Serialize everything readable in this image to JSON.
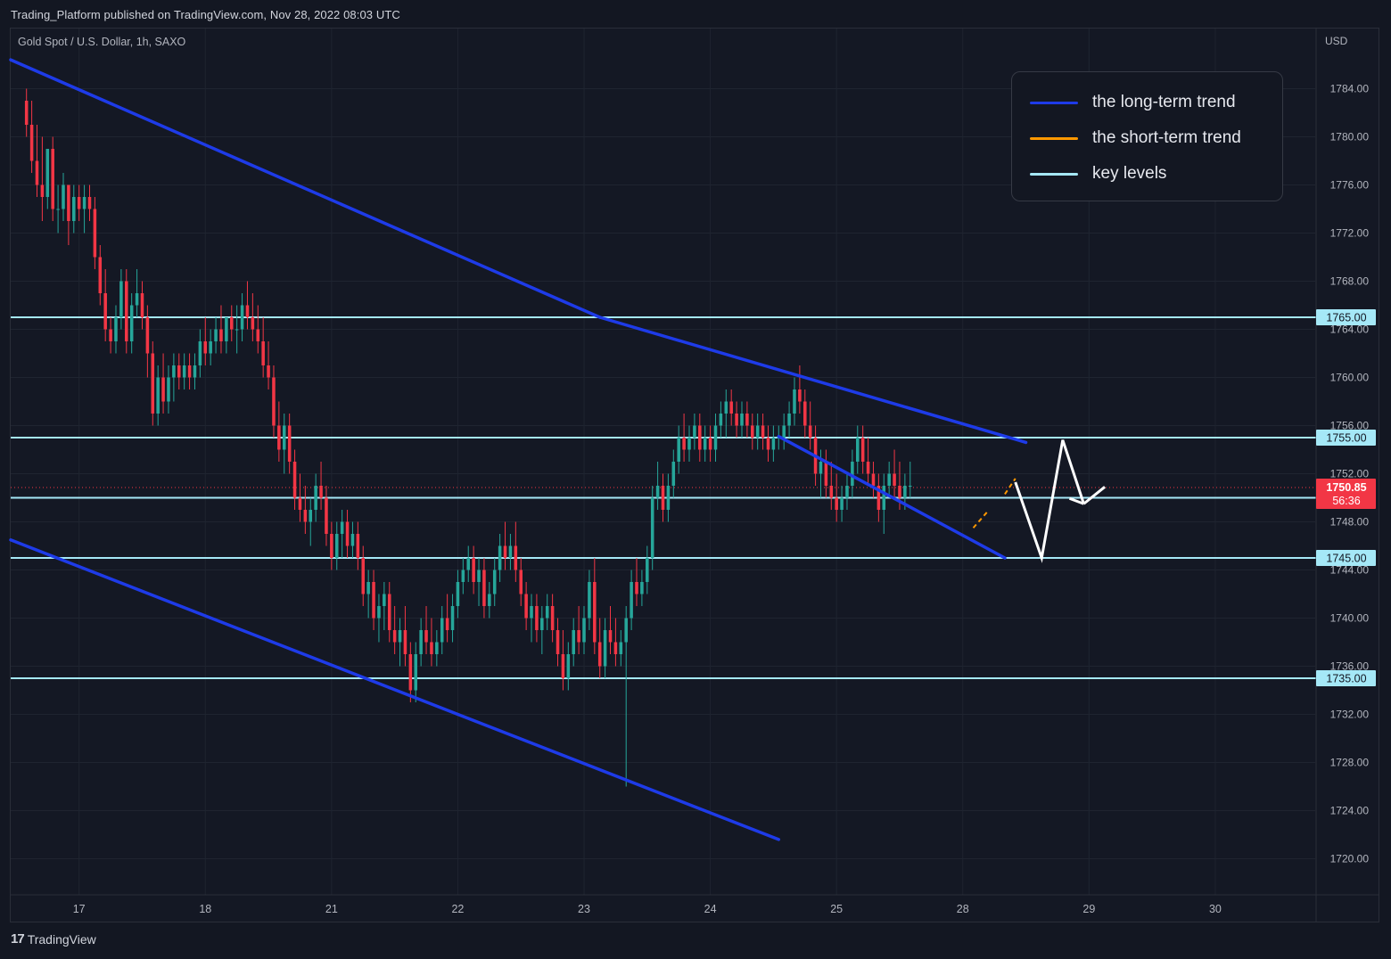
{
  "header": {
    "caption": "Trading_Platform published on TradingView.com, Nov 28, 2022 08:03 UTC",
    "symbol": "Gold Spot / U.S. Dollar, 1h, SAXO",
    "currency": "USD"
  },
  "legend": {
    "items": [
      {
        "label": "the long-term trend",
        "color": "#1e3be8"
      },
      {
        "label": "the short-term trend",
        "color": "#ff9800"
      },
      {
        "label": "key levels",
        "color": "#a5e8f7"
      }
    ]
  },
  "footer": {
    "brand_mark": "17",
    "brand": "TradingView"
  },
  "price_label": {
    "price": "1750.85",
    "countdown": "56:36",
    "color": "#f23645"
  },
  "chart_data": {
    "type": "candlestick",
    "ylim": [
      1717,
      1789
    ],
    "yticks": [
      1720,
      1724,
      1728,
      1732,
      1736,
      1740,
      1744,
      1748,
      1752,
      1756,
      1760,
      1764,
      1768,
      1772,
      1776,
      1780,
      1784
    ],
    "ytick_labels": [
      "1720.00",
      "1724.00",
      "1728.00",
      "1732.00",
      "1736.00",
      "1740.00",
      "1744.00",
      "1748.00",
      "1752.00",
      "1756.00",
      "1760.00",
      "1764.00",
      "1768.00",
      "1772.00",
      "1776.00",
      "1780.00",
      "1784.00"
    ],
    "xticks": [
      {
        "label": "17",
        "index": 10
      },
      {
        "label": "18",
        "index": 34
      },
      {
        "label": "21",
        "index": 58
      },
      {
        "label": "22",
        "index": 82
      },
      {
        "label": "23",
        "index": 106
      },
      {
        "label": "24",
        "index": 130
      },
      {
        "label": "25",
        "index": 154
      },
      {
        "label": "28",
        "index": 178
      },
      {
        "label": "29",
        "index": 202
      },
      {
        "label": "30",
        "index": 226
      }
    ],
    "index_range": [
      -3,
      245
    ],
    "up_color": "#26a69a",
    "down_color": "#f23645",
    "current_price": 1750.85,
    "key_levels": [
      {
        "price": 1765.0,
        "label": "1765.00"
      },
      {
        "price": 1755.0,
        "label": "1755.00"
      },
      {
        "price": 1750.0,
        "label": "1750.00"
      },
      {
        "price": 1745.0,
        "label": "1745.00"
      },
      {
        "price": 1735.0,
        "label": "1735.00"
      }
    ],
    "key_level_color": "#a5e8f7",
    "trend_lines": [
      {
        "name": "long-term-upper",
        "from": [
          -3,
          1786.4
        ],
        "to": [
          109,
          1765.0
        ],
        "color": "#1e3be8"
      },
      {
        "name": "long-term-upper-2",
        "from": [
          109,
          1765.0
        ],
        "to": [
          190,
          1754.6
        ],
        "color": "#1e3be8"
      },
      {
        "name": "long-term-lower",
        "from": [
          -3,
          1746.5
        ],
        "to": [
          143,
          1721.6
        ],
        "color": "#1e3be8"
      },
      {
        "name": "channel-lower",
        "from": [
          143,
          1755.1
        ],
        "to": [
          186,
          1745.0
        ],
        "color": "#1e3be8"
      }
    ],
    "short_term_lines": [
      {
        "from": [
          180,
          1747.5
        ],
        "to": [
          183,
          1749.0
        ],
        "color": "#ff9800"
      },
      {
        "from": [
          186,
          1750.3
        ],
        "to": [
          188,
          1751.6
        ],
        "color": "#ff9800"
      }
    ],
    "projection": {
      "color": "#ffffff",
      "points": [
        [
          188,
          1751.3
        ],
        [
          193,
          1745.0
        ],
        [
          197,
          1754.8
        ],
        [
          201,
          1749.5
        ]
      ],
      "arrow_end": [
        205,
        1750.9
      ]
    },
    "candles": [
      [
        1783,
        1784,
        1780,
        1781
      ],
      [
        1781,
        1783,
        1777,
        1778
      ],
      [
        1778,
        1781,
        1775,
        1776
      ],
      [
        1776,
        1780,
        1773,
        1775
      ],
      [
        1775,
        1779,
        1774,
        1779
      ],
      [
        1779,
        1780,
        1773,
        1774
      ],
      [
        1774,
        1776,
        1772,
        1774
      ],
      [
        1774,
        1777,
        1773,
        1776
      ],
      [
        1776,
        1776,
        1771,
        1773
      ],
      [
        1773,
        1776,
        1772,
        1775
      ],
      [
        1775,
        1776,
        1773,
        1774
      ],
      [
        1774,
        1776,
        1772,
        1775
      ],
      [
        1775,
        1776,
        1773,
        1774
      ],
      [
        1774,
        1775,
        1769,
        1770
      ],
      [
        1770,
        1771,
        1766,
        1767
      ],
      [
        1767,
        1769,
        1763,
        1764
      ],
      [
        1764,
        1765,
        1762,
        1763
      ],
      [
        1763,
        1766,
        1762,
        1765
      ],
      [
        1765,
        1769,
        1764,
        1768
      ],
      [
        1768,
        1769,
        1762,
        1763
      ],
      [
        1763,
        1767,
        1762,
        1766
      ],
      [
        1766,
        1769,
        1765,
        1767
      ],
      [
        1767,
        1768,
        1764,
        1765
      ],
      [
        1765,
        1766,
        1760,
        1762
      ],
      [
        1762,
        1763,
        1756,
        1757
      ],
      [
        1757,
        1761,
        1756,
        1760
      ],
      [
        1760,
        1762,
        1757,
        1758
      ],
      [
        1758,
        1761,
        1757,
        1760
      ],
      [
        1760,
        1762,
        1758,
        1761
      ],
      [
        1761,
        1762,
        1759,
        1760
      ],
      [
        1760,
        1762,
        1759,
        1761
      ],
      [
        1761,
        1762,
        1759,
        1760
      ],
      [
        1760,
        1762,
        1759,
        1761
      ],
      [
        1761,
        1764,
        1760,
        1763
      ],
      [
        1763,
        1765,
        1761,
        1762
      ],
      [
        1762,
        1764,
        1761,
        1763
      ],
      [
        1763,
        1765,
        1762,
        1764
      ],
      [
        1764,
        1766,
        1762,
        1763
      ],
      [
        1763,
        1765,
        1762,
        1765
      ],
      [
        1765,
        1766,
        1763,
        1764
      ],
      [
        1764,
        1766,
        1762,
        1764
      ],
      [
        1764,
        1767,
        1763,
        1766
      ],
      [
        1766,
        1768,
        1764,
        1765
      ],
      [
        1765,
        1767,
        1763,
        1764
      ],
      [
        1764,
        1766,
        1762,
        1763
      ],
      [
        1763,
        1765,
        1760,
        1761
      ],
      [
        1761,
        1763,
        1759,
        1760
      ],
      [
        1760,
        1761,
        1755,
        1756
      ],
      [
        1756,
        1758,
        1753,
        1754
      ],
      [
        1754,
        1757,
        1752,
        1756
      ],
      [
        1756,
        1757,
        1752,
        1753
      ],
      [
        1753,
        1754,
        1749,
        1750
      ],
      [
        1750,
        1752,
        1748,
        1749
      ],
      [
        1749,
        1751,
        1747,
        1748
      ],
      [
        1748,
        1750,
        1746,
        1749
      ],
      [
        1749,
        1752,
        1748,
        1751
      ],
      [
        1751,
        1753,
        1749,
        1750
      ],
      [
        1750,
        1751,
        1746,
        1747
      ],
      [
        1747,
        1748,
        1744,
        1745
      ],
      [
        1745,
        1748,
        1744,
        1747
      ],
      [
        1747,
        1749,
        1745,
        1748
      ],
      [
        1748,
        1749,
        1745,
        1746
      ],
      [
        1746,
        1748,
        1745,
        1747
      ],
      [
        1747,
        1748,
        1744,
        1745
      ],
      [
        1745,
        1746,
        1741,
        1742
      ],
      [
        1742,
        1744,
        1740,
        1743
      ],
      [
        1743,
        1744,
        1739,
        1740
      ],
      [
        1740,
        1742,
        1738,
        1741
      ],
      [
        1741,
        1743,
        1739,
        1742
      ],
      [
        1742,
        1743,
        1738,
        1739
      ],
      [
        1739,
        1741,
        1737,
        1738
      ],
      [
        1738,
        1740,
        1736,
        1739
      ],
      [
        1739,
        1741,
        1736,
        1737
      ],
      [
        1737,
        1738,
        1733,
        1734
      ],
      [
        1734,
        1738,
        1733,
        1737
      ],
      [
        1737,
        1740,
        1736,
        1739
      ],
      [
        1739,
        1741,
        1737,
        1738
      ],
      [
        1738,
        1740,
        1736,
        1737
      ],
      [
        1737,
        1739,
        1736,
        1738
      ],
      [
        1738,
        1741,
        1737,
        1740
      ],
      [
        1740,
        1742,
        1738,
        1739
      ],
      [
        1739,
        1742,
        1738,
        1741
      ],
      [
        1741,
        1744,
        1740,
        1743
      ],
      [
        1743,
        1745,
        1742,
        1744
      ],
      [
        1744,
        1746,
        1743,
        1745
      ],
      [
        1745,
        1746,
        1742,
        1743
      ],
      [
        1743,
        1745,
        1741,
        1744
      ],
      [
        1744,
        1745,
        1740,
        1741
      ],
      [
        1741,
        1743,
        1740,
        1742
      ],
      [
        1742,
        1745,
        1741,
        1744
      ],
      [
        1744,
        1747,
        1743,
        1746
      ],
      [
        1746,
        1748,
        1744,
        1745
      ],
      [
        1745,
        1747,
        1744,
        1746
      ],
      [
        1746,
        1748,
        1743,
        1744
      ],
      [
        1744,
        1745,
        1741,
        1742
      ],
      [
        1742,
        1743,
        1739,
        1740
      ],
      [
        1740,
        1742,
        1738,
        1741
      ],
      [
        1741,
        1742,
        1738,
        1739
      ],
      [
        1739,
        1741,
        1737,
        1740
      ],
      [
        1740,
        1742,
        1739,
        1741
      ],
      [
        1741,
        1742,
        1738,
        1739
      ],
      [
        1739,
        1740,
        1736,
        1737
      ],
      [
        1737,
        1739,
        1734,
        1735
      ],
      [
        1735,
        1738,
        1734,
        1737
      ],
      [
        1737,
        1740,
        1736,
        1739
      ],
      [
        1739,
        1741,
        1737,
        1738
      ],
      [
        1738,
        1741,
        1737,
        1740
      ],
      [
        1740,
        1744,
        1739,
        1743
      ],
      [
        1743,
        1745,
        1737,
        1738
      ],
      [
        1738,
        1740,
        1735,
        1736
      ],
      [
        1736,
        1740,
        1735,
        1739
      ],
      [
        1739,
        1741,
        1737,
        1738
      ],
      [
        1738,
        1740,
        1736,
        1737
      ],
      [
        1737,
        1739,
        1736,
        1738
      ],
      [
        1738,
        1741,
        1726,
        1740
      ],
      [
        1740,
        1744,
        1739,
        1743
      ],
      [
        1743,
        1745,
        1741,
        1742
      ],
      [
        1742,
        1744,
        1741,
        1743
      ],
      [
        1743,
        1746,
        1742,
        1745
      ],
      [
        1745,
        1751,
        1744,
        1750
      ],
      [
        1750,
        1753,
        1749,
        1751
      ],
      [
        1751,
        1752,
        1748,
        1749
      ],
      [
        1749,
        1752,
        1748,
        1751
      ],
      [
        1751,
        1754,
        1750,
        1753
      ],
      [
        1753,
        1756,
        1752,
        1755
      ],
      [
        1755,
        1757,
        1753,
        1754
      ],
      [
        1754,
        1756,
        1753,
        1755
      ],
      [
        1755,
        1757,
        1754,
        1756
      ],
      [
        1756,
        1757,
        1753,
        1754
      ],
      [
        1754,
        1756,
        1753,
        1755
      ],
      [
        1755,
        1756,
        1753,
        1754
      ],
      [
        1754,
        1757,
        1753,
        1756
      ],
      [
        1756,
        1758,
        1755,
        1757
      ],
      [
        1757,
        1759,
        1755,
        1758
      ],
      [
        1758,
        1759,
        1756,
        1757
      ],
      [
        1757,
        1758,
        1755,
        1756
      ],
      [
        1756,
        1758,
        1755,
        1757
      ],
      [
        1757,
        1758,
        1755,
        1756
      ],
      [
        1756,
        1757,
        1754,
        1755
      ],
      [
        1755,
        1757,
        1754,
        1756
      ],
      [
        1756,
        1757,
        1754,
        1755
      ],
      [
        1755,
        1756,
        1753,
        1754
      ],
      [
        1754,
        1756,
        1753,
        1755
      ],
      [
        1755,
        1756,
        1754,
        1755
      ],
      [
        1755,
        1757,
        1754,
        1756
      ],
      [
        1756,
        1758,
        1755,
        1757
      ],
      [
        1757,
        1760,
        1756,
        1759
      ],
      [
        1759,
        1761,
        1757,
        1758
      ],
      [
        1758,
        1759,
        1755,
        1756
      ],
      [
        1756,
        1758,
        1754,
        1755
      ],
      [
        1755,
        1756,
        1751,
        1752
      ],
      [
        1752,
        1754,
        1750,
        1753
      ],
      [
        1753,
        1754,
        1750,
        1751
      ],
      [
        1751,
        1753,
        1749,
        1750
      ],
      [
        1750,
        1752,
        1748,
        1749
      ],
      [
        1749,
        1751,
        1748,
        1750
      ],
      [
        1750,
        1752,
        1749,
        1751
      ],
      [
        1751,
        1754,
        1750,
        1753
      ],
      [
        1753,
        1756,
        1752,
        1755
      ],
      [
        1755,
        1756,
        1752,
        1753
      ],
      [
        1753,
        1755,
        1751,
        1752
      ],
      [
        1752,
        1753,
        1750,
        1751
      ],
      [
        1751,
        1752,
        1748,
        1749
      ],
      [
        1749,
        1752,
        1747,
        1751
      ],
      [
        1751,
        1753,
        1750,
        1752
      ],
      [
        1752,
        1754,
        1750,
        1751
      ],
      [
        1751,
        1753,
        1749,
        1750
      ],
      [
        1750,
        1752,
        1749,
        1751
      ],
      [
        1751,
        1753,
        1750,
        1751
      ]
    ]
  }
}
